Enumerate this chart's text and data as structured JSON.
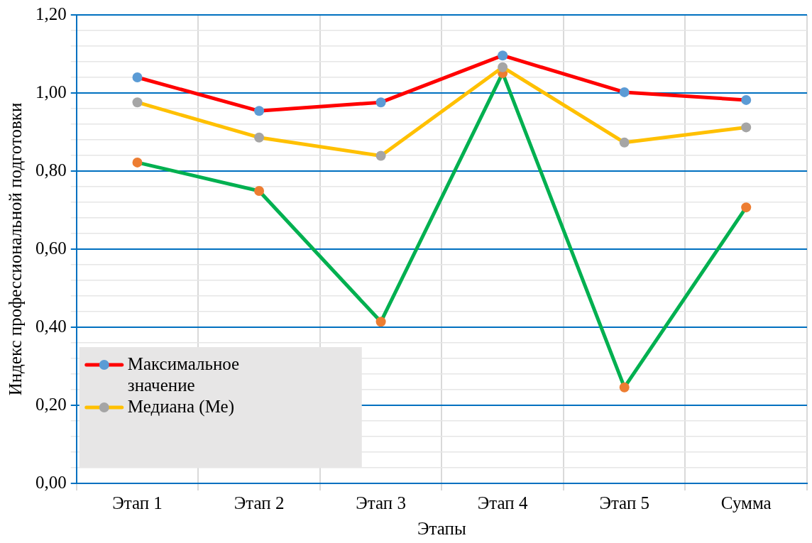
{
  "chart_data": {
    "type": "line",
    "xlabel": "Этапы",
    "ylabel": "Индекс профессиональной подготовки",
    "categories": [
      "Этап 1",
      "Этап 2",
      "Этап 3",
      "Этап 4",
      "Этап 5",
      "Сумма"
    ],
    "series": [
      {
        "name": "Максимальное значение",
        "color": "#ff0000",
        "colors": [
          "#5b9bd5",
          "#5b9bd5",
          "#5b9bd5",
          "#5b9bd5",
          "#5b9bd5",
          "#5b9bd5"
        ],
        "values": [
          1.04,
          0.954,
          0.976,
          1.096,
          1.002,
          0.982
        ]
      },
      {
        "name": "Медиана (Ме)",
        "color": "#ffc000",
        "colors": [
          "#a5a5a5",
          "#a5a5a5",
          "#a5a5a5",
          "#a5a5a5",
          "#a5a5a5",
          "#a5a5a5"
        ],
        "values": [
          0.976,
          0.886,
          0.839,
          1.066,
          0.873,
          0.912
        ]
      },
      {
        "color": "#00b050",
        "colors": [
          "#ed7d31",
          "#ed7d31",
          "#ed7d31",
          "#ed7d31",
          "#ed7d31",
          "#ed7d31"
        ],
        "values": [
          0.822,
          0.749,
          0.414,
          1.051,
          0.246,
          0.707
        ]
      }
    ],
    "ylim": [
      0,
      1.2
    ],
    "yticks": [
      {
        "value": 0,
        "label": "0,00"
      },
      {
        "value": 0.04,
        "label": null
      },
      {
        "value": 0.08,
        "label": null
      },
      {
        "value": 0.12,
        "label": null
      },
      {
        "value": 0.16,
        "label": null
      },
      {
        "value": 0.2,
        "label": "0,20"
      },
      {
        "value": 0.24,
        "label": null
      },
      {
        "value": 0.28,
        "label": null
      },
      {
        "value": 0.32,
        "label": null
      },
      {
        "value": 0.36,
        "label": null
      },
      {
        "value": 0.4,
        "label": "0,40"
      },
      {
        "value": 0.44,
        "label": null
      },
      {
        "value": 0.48,
        "label": null
      },
      {
        "value": 0.52,
        "label": null
      },
      {
        "value": 0.56,
        "label": null
      },
      {
        "value": 0.6,
        "label": "0,60"
      },
      {
        "value": 0.64,
        "label": null
      },
      {
        "value": 0.68,
        "label": null
      },
      {
        "value": 0.72,
        "label": null
      },
      {
        "value": 0.76,
        "label": null
      },
      {
        "value": 0.8,
        "label": "0,80"
      },
      {
        "value": 0.84,
        "label": null
      },
      {
        "value": 0.88,
        "label": null
      },
      {
        "value": 0.92,
        "label": null
      },
      {
        "value": 0.96,
        "label": null
      },
      {
        "value": 1.0,
        "label": "1,00"
      },
      {
        "value": 1.04,
        "label": null
      },
      {
        "value": 1.08,
        "label": null
      },
      {
        "value": 1.12,
        "label": null
      },
      {
        "value": 1.16,
        "label": null
      },
      {
        "value": 1.2,
        "label": "1,20"
      }
    ],
    "grid": true,
    "legend": "bottom left",
    "marker": "circle",
    "line_style": "solid"
  }
}
